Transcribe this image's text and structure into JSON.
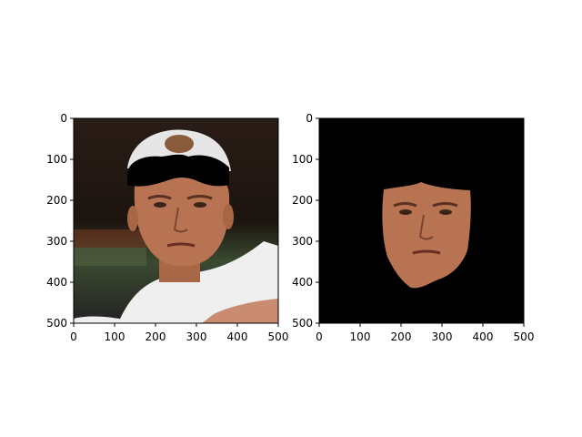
{
  "chart_data": [
    {
      "type": "image",
      "title": "",
      "xlabel": "",
      "ylabel": "",
      "xlim": [
        0,
        500
      ],
      "ylim": [
        500,
        0
      ],
      "xticks": [
        0,
        100,
        200,
        300,
        400,
        500
      ],
      "yticks": [
        0,
        100,
        200,
        300,
        400,
        500
      ],
      "xtick_labels": [
        "0",
        "100",
        "200",
        "300",
        "400",
        "500"
      ],
      "ytick_labels": [
        "0",
        "100",
        "200",
        "300",
        "400",
        "500"
      ],
      "grid": false,
      "content": "photo with dark mask over forehead"
    },
    {
      "type": "image",
      "title": "",
      "xlabel": "",
      "ylabel": "",
      "xlim": [
        0,
        500
      ],
      "ylim": [
        500,
        0
      ],
      "xticks": [
        0,
        100,
        200,
        300,
        400,
        500
      ],
      "yticks": [
        0,
        100,
        200,
        300,
        400,
        500
      ],
      "xtick_labels": [
        "0",
        "100",
        "200",
        "300",
        "400",
        "500"
      ],
      "ytick_labels": [
        "0",
        "100",
        "200",
        "300",
        "400",
        "500"
      ],
      "grid": false,
      "content": "segmented face on black background"
    }
  ],
  "colors": {
    "background": "#ffffff",
    "axis": "#000000",
    "dark_bg": "#000000",
    "skin": "#b87452",
    "hair": "#8a5a3c",
    "cap": "#e8e8e8",
    "shirt": "#eeeeee"
  }
}
